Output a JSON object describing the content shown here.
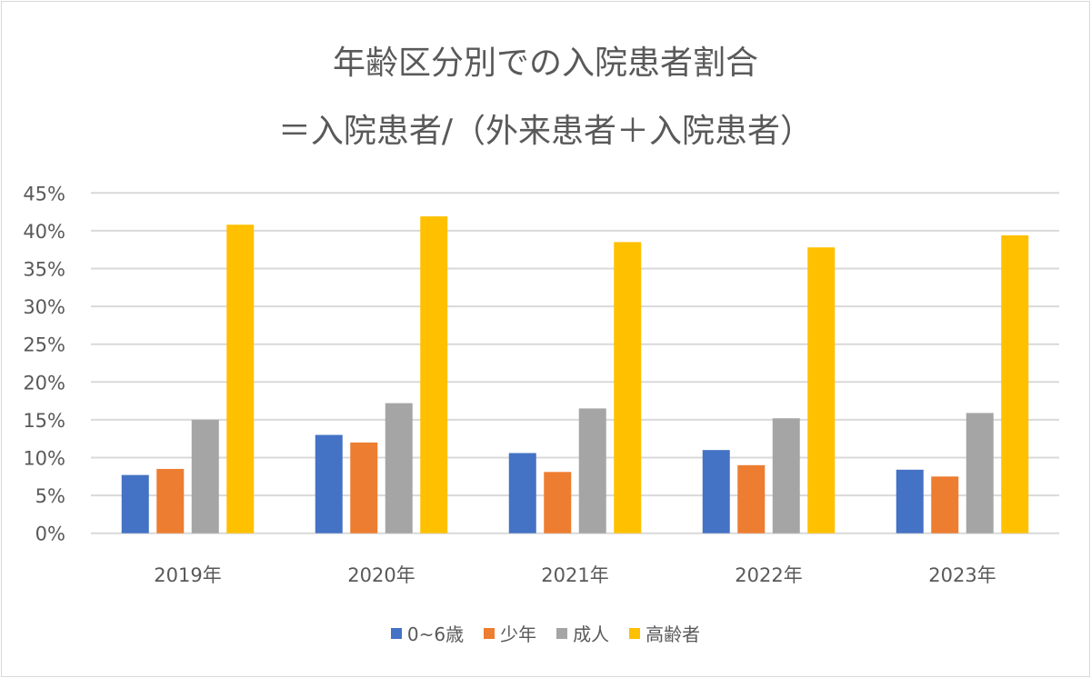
{
  "chart_data": {
    "type": "bar",
    "title_lines": [
      "年齢区分別での入院患者割合",
      "＝入院患者/（外来患者＋入院患者）"
    ],
    "categories": [
      "2019年",
      "2020年",
      "2021年",
      "2022年",
      "2023年"
    ],
    "series": [
      {
        "name": "0~6歳",
        "color": "#4472c4",
        "values": [
          7.7,
          13.0,
          10.6,
          11.0,
          8.4
        ]
      },
      {
        "name": "少年",
        "color": "#ed7d31",
        "values": [
          8.5,
          12.0,
          8.1,
          9.0,
          7.5
        ]
      },
      {
        "name": "成人",
        "color": "#a5a5a5",
        "values": [
          15.0,
          17.2,
          16.5,
          15.2,
          15.9
        ]
      },
      {
        "name": "高齢者",
        "color": "#ffc000",
        "values": [
          40.8,
          41.9,
          38.5,
          37.8,
          39.4
        ]
      }
    ],
    "ylim": [
      0,
      45
    ],
    "yticks": [
      "0%",
      "5%",
      "10%",
      "15%",
      "20%",
      "25%",
      "30%",
      "35%",
      "40%",
      "45%"
    ],
    "unit": "%",
    "grid": true,
    "legend_position": "bottom"
  }
}
